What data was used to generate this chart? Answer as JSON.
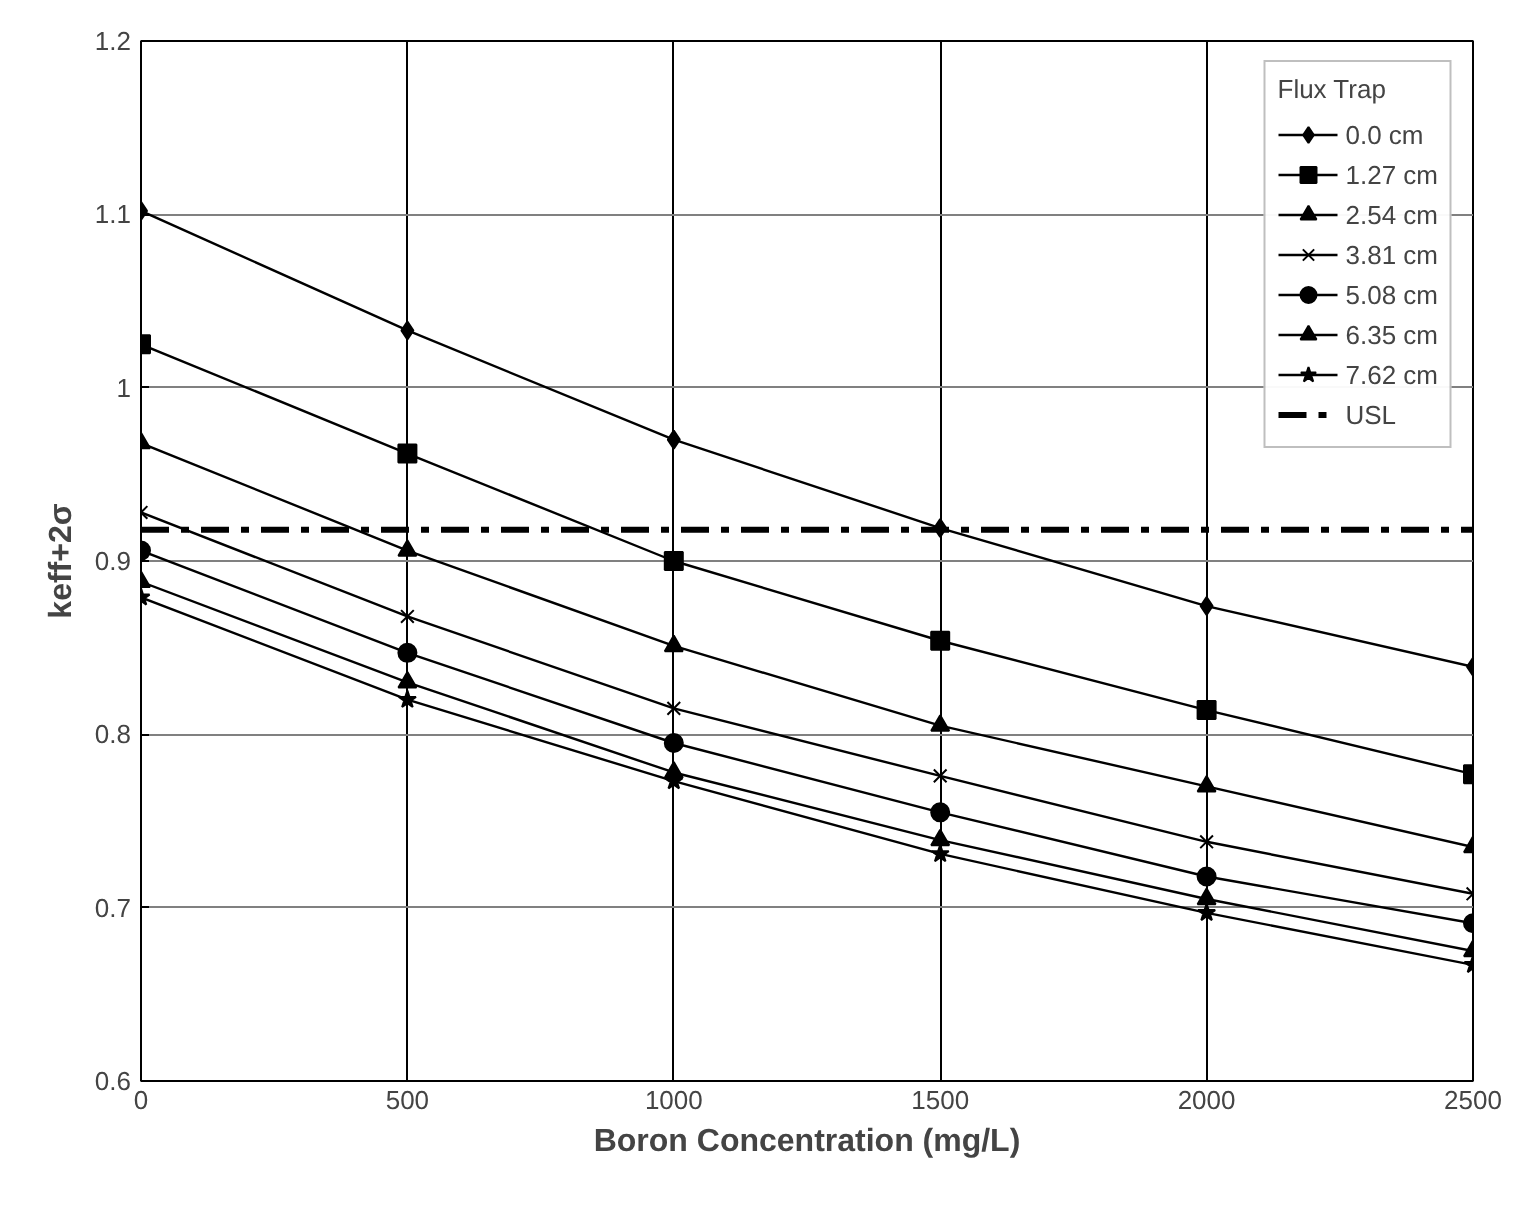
{
  "chart_data": {
    "type": "line",
    "xlabel": "Boron Concentration (mg/L)",
    "ylabel": "keff+2σ",
    "legend_title": "Flux Trap",
    "x": [
      0,
      500,
      1000,
      1500,
      2000,
      2500
    ],
    "series": [
      {
        "name": "0.0 cm",
        "color": "#000000",
        "marker": "diamond",
        "values": [
          1.102,
          1.033,
          0.97,
          0.919,
          0.874,
          0.839
        ]
      },
      {
        "name": "1.27 cm",
        "color": "#000000",
        "marker": "square",
        "values": [
          1.025,
          0.962,
          0.9,
          0.854,
          0.814,
          0.777
        ]
      },
      {
        "name": "2.54 cm",
        "color": "#000000",
        "marker": "triangle",
        "values": [
          0.968,
          0.906,
          0.851,
          0.805,
          0.77,
          0.735
        ]
      },
      {
        "name": "3.81 cm",
        "color": "#000000",
        "marker": "cross",
        "values": [
          0.928,
          0.868,
          0.815,
          0.776,
          0.738,
          0.708
        ]
      },
      {
        "name": "5.08 cm",
        "color": "#000000",
        "marker": "circle",
        "values": [
          0.906,
          0.847,
          0.795,
          0.755,
          0.718,
          0.691
        ]
      },
      {
        "name": "6.35 cm",
        "color": "#000000",
        "marker": "triangle",
        "values": [
          0.888,
          0.83,
          0.778,
          0.739,
          0.705,
          0.675
        ]
      },
      {
        "name": "7.62 cm",
        "color": "#000000",
        "marker": "star",
        "values": [
          0.879,
          0.82,
          0.773,
          0.731,
          0.697,
          0.667
        ]
      },
      {
        "name": "USL",
        "color": "#000000",
        "marker": "none",
        "line_style": "dashed",
        "x": [
          0,
          2500
        ],
        "values": [
          0.918,
          0.918
        ]
      }
    ],
    "xlim": [
      0,
      2500
    ],
    "xticks": [
      0,
      500,
      1000,
      1500,
      2000,
      2500
    ],
    "ylim": [
      0.6,
      1.2
    ],
    "yticks": [
      0.6,
      0.7,
      0.8,
      0.9,
      1,
      1.1,
      1.2
    ],
    "grid": true,
    "legend": "top right"
  }
}
